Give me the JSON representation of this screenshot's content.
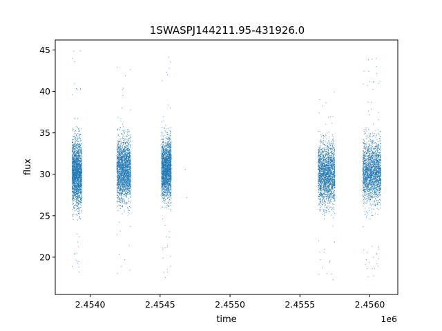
{
  "chart_data": {
    "type": "scatter",
    "title": "1SWASPJ144211.95-431926.0",
    "xlabel": "time",
    "ylabel": "flux",
    "x_offset_label": "1e6",
    "x_scale_multiplier": 1000000,
    "xlim": [
      2.45375,
      2.4562
    ],
    "ylim": [
      15.5,
      46.2
    ],
    "x_ticks": [
      2.454,
      2.4545,
      2.455,
      2.4555,
      2.456
    ],
    "x_tick_labels": [
      "2.4540",
      "2.4545",
      "2.4550",
      "2.4555",
      "2.4560"
    ],
    "y_ticks": [
      20,
      25,
      30,
      35,
      40,
      45
    ],
    "y_tick_labels": [
      "20",
      "25",
      "30",
      "35",
      "40",
      "45"
    ],
    "grid": false,
    "legend": "none",
    "marker_color": "#1f77b4",
    "series": [
      {
        "clusters": [
          {
            "x_start": 2.45387,
            "x_end": 2.45394,
            "y_center": 30.2,
            "y_spread": 2.6,
            "y_min": 17.0,
            "y_max": 45.0
          },
          {
            "x_start": 2.45419,
            "x_end": 2.45429,
            "y_center": 30.5,
            "y_spread": 2.4,
            "y_min": 17.1,
            "y_max": 44.0
          },
          {
            "x_start": 2.45451,
            "x_end": 2.45458,
            "y_center": 30.6,
            "y_spread": 2.3,
            "y_min": 16.9,
            "y_max": 44.5
          },
          {
            "x_start": 2.45563,
            "x_end": 2.45575,
            "y_center": 30.0,
            "y_spread": 2.4,
            "y_min": 17.2,
            "y_max": 40.5
          },
          {
            "x_start": 2.45595,
            "x_end": 2.45608,
            "y_center": 30.3,
            "y_spread": 2.4,
            "y_min": 17.5,
            "y_max": 44.1
          }
        ]
      }
    ]
  }
}
